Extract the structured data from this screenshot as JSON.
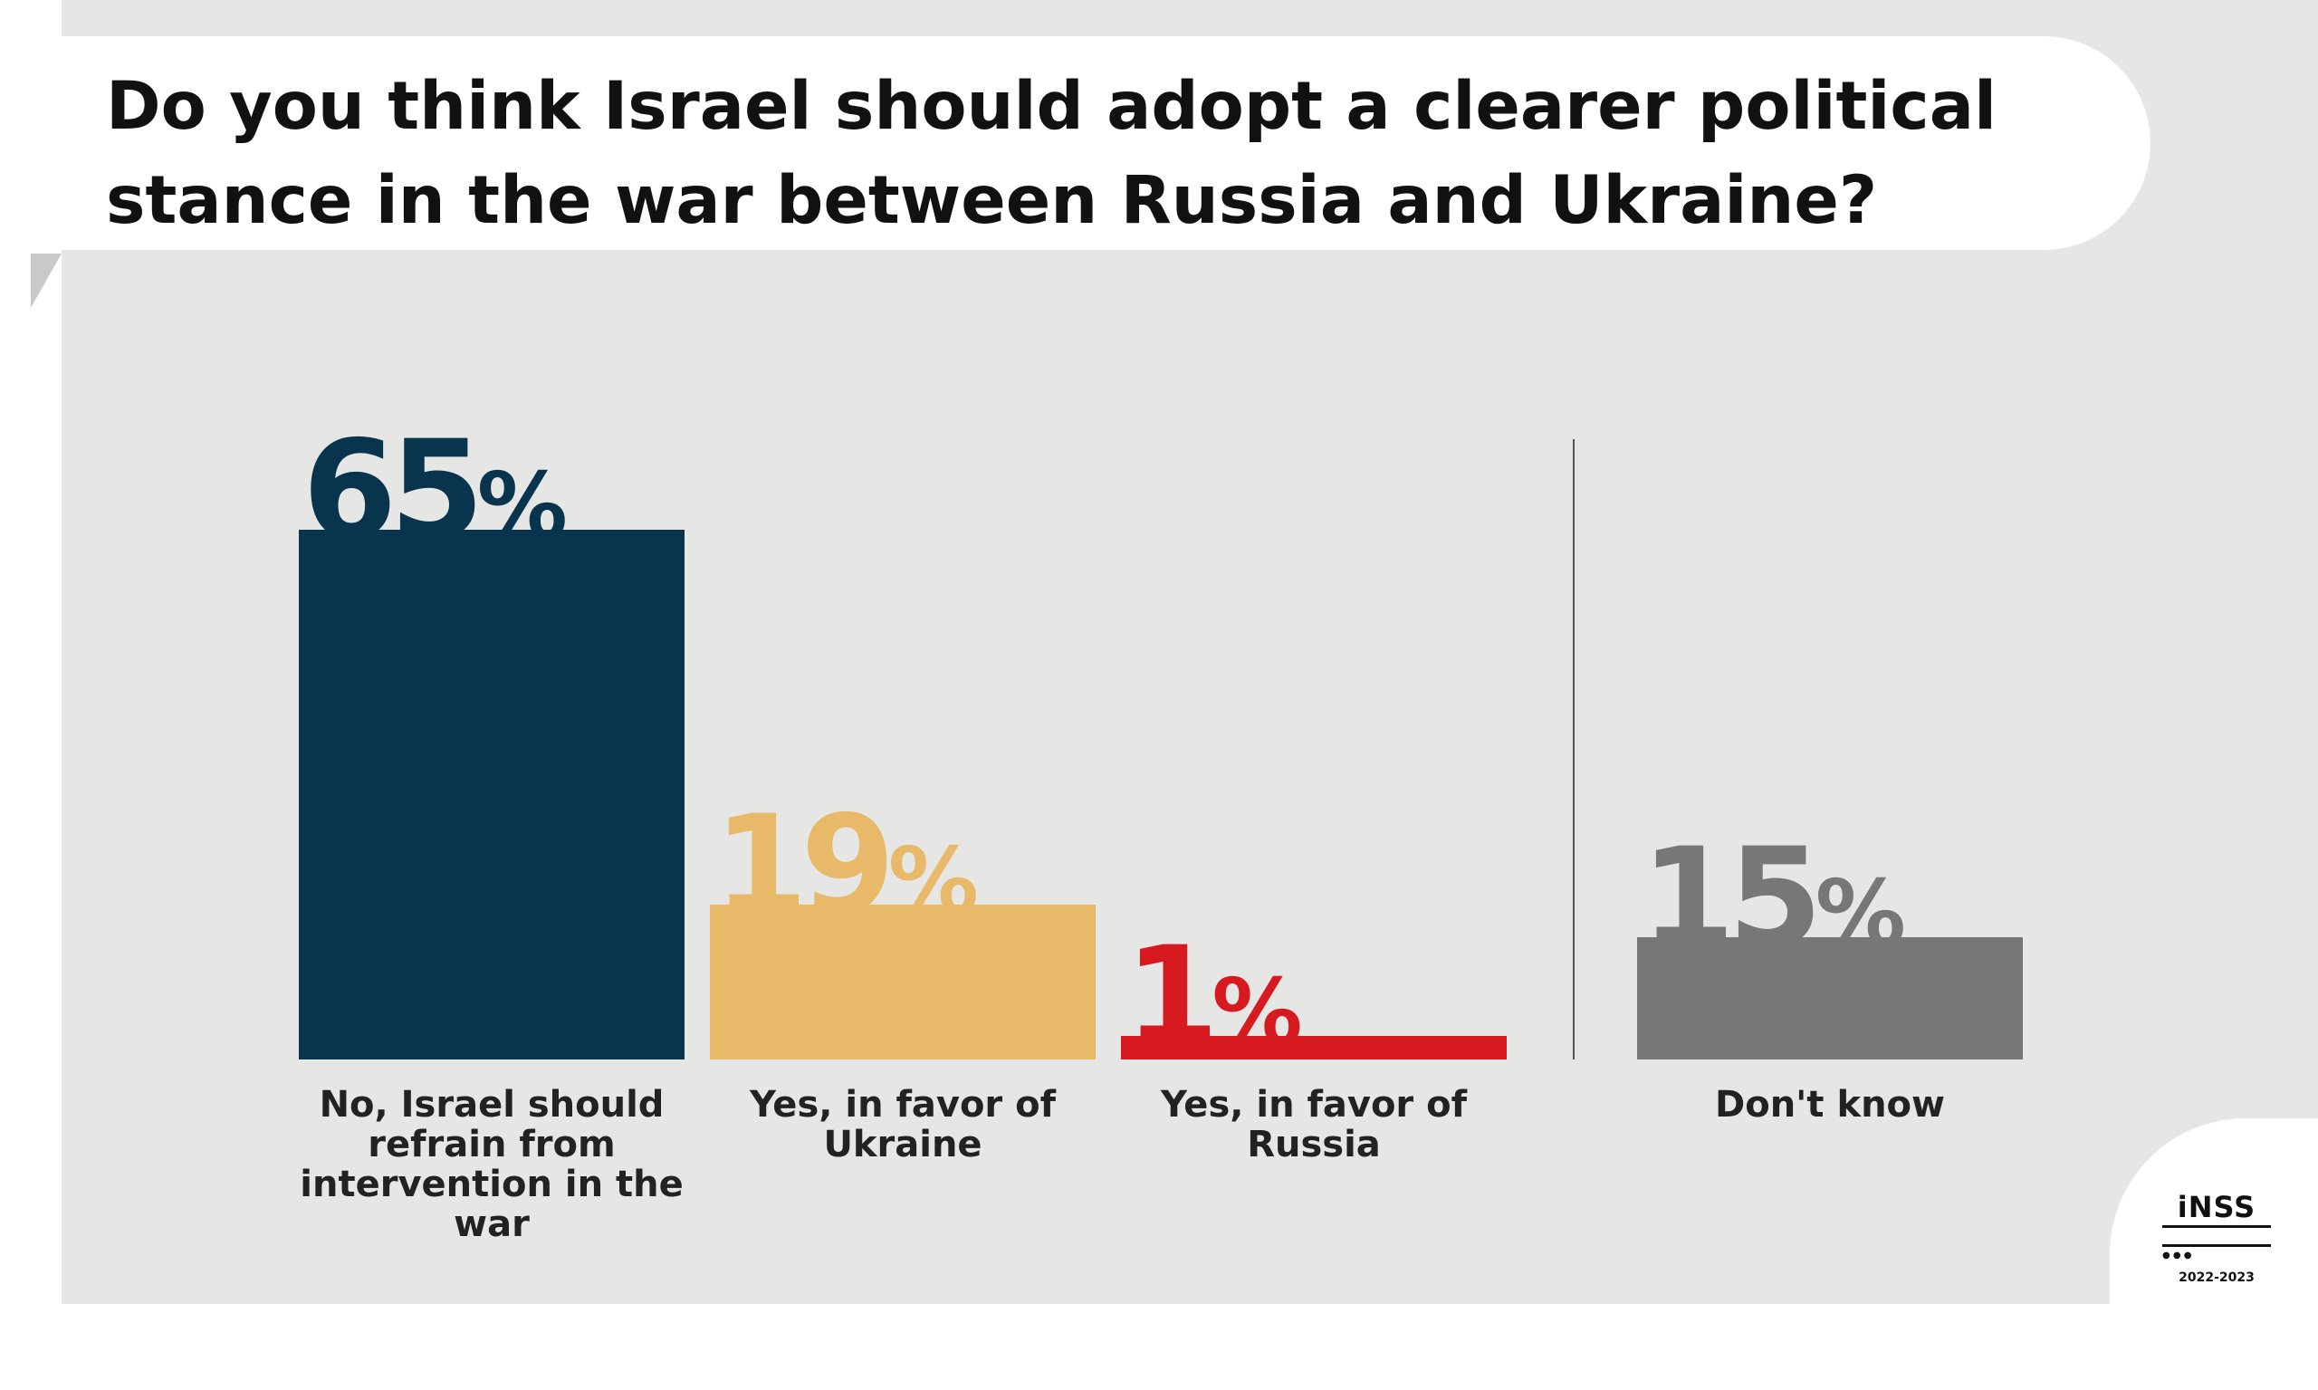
{
  "title": "Do you think Israel should adopt a clearer political stance in the war between Russia and Ukraine?",
  "colors": {
    "no": "#08354d",
    "ukraine": "#e9b96a",
    "russia": "#d71920",
    "dont_know": "#777777",
    "divider": "#555555"
  },
  "chart_data": {
    "type": "bar",
    "categories": [
      "No, Israel should refrain from intervention in the war",
      "Yes, in favor of Ukraine",
      "Yes, in favor of Russia",
      "Don't know"
    ],
    "values": [
      65,
      19,
      1,
      15
    ],
    "value_labels": [
      "65%",
      "19%",
      "1%",
      "15%"
    ],
    "ylim": [
      0,
      100
    ],
    "grid": false,
    "legend": "none",
    "separator_before_last": true
  },
  "logo": {
    "name": "iNSS",
    "year": "2022-2023"
  }
}
